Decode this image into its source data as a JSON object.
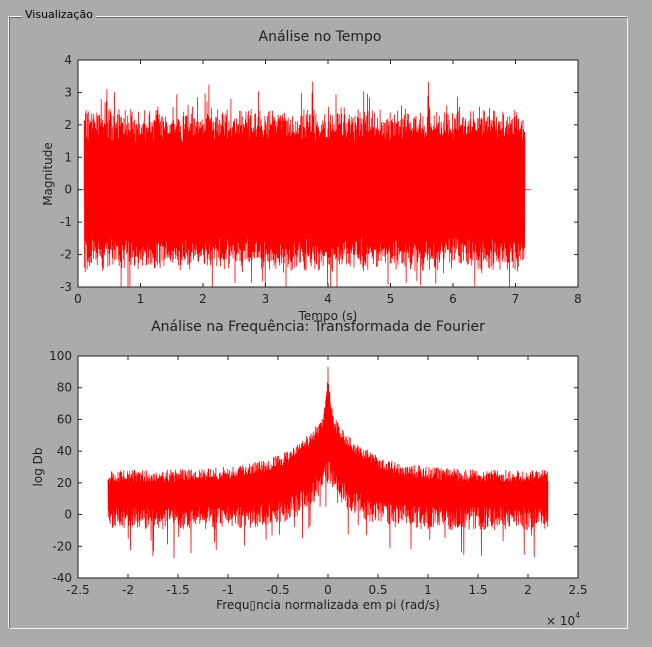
{
  "panel": {
    "title": "Visualização"
  },
  "chart_data": [
    {
      "type": "line",
      "title": "Análise no Tempo",
      "xlabel": "Tempo (s)",
      "ylabel": "Magnitude",
      "xlim": [
        0,
        8
      ],
      "ylim": [
        -3,
        4
      ],
      "xticks": [
        0,
        1,
        2,
        3,
        4,
        5,
        6,
        7,
        8
      ],
      "yticks": [
        -3,
        -2,
        -1,
        0,
        1,
        2,
        3,
        4
      ],
      "series_color": "#ff0000",
      "signal": {
        "x_start": 0.1,
        "x_end": 7.15,
        "amplitude_typical": 2.2,
        "amplitude_peak": 3.2
      }
    },
    {
      "type": "line",
      "title": "Análise na Frequência: Transformada de Fourier",
      "xlabel": "Frequ▯ncia normalizada em pi (rad/s)",
      "ylabel": "log Db",
      "xlim": [
        -2.5,
        2.5
      ],
      "ylim": [
        -40,
        100
      ],
      "xticks": [
        -2.5,
        -2,
        -1.5,
        -1,
        -0.5,
        0,
        0.5,
        1,
        1.5,
        2,
        2.5
      ],
      "yticks": [
        -40,
        -20,
        0,
        20,
        40,
        60,
        80,
        100
      ],
      "x_multiplier": "× 10",
      "x_multiplier_exponent": "4",
      "series_color": "#ff0000",
      "spectrum": {
        "x_start": -2.2,
        "x_end": 2.2,
        "peak_value": 98
      }
    }
  ]
}
